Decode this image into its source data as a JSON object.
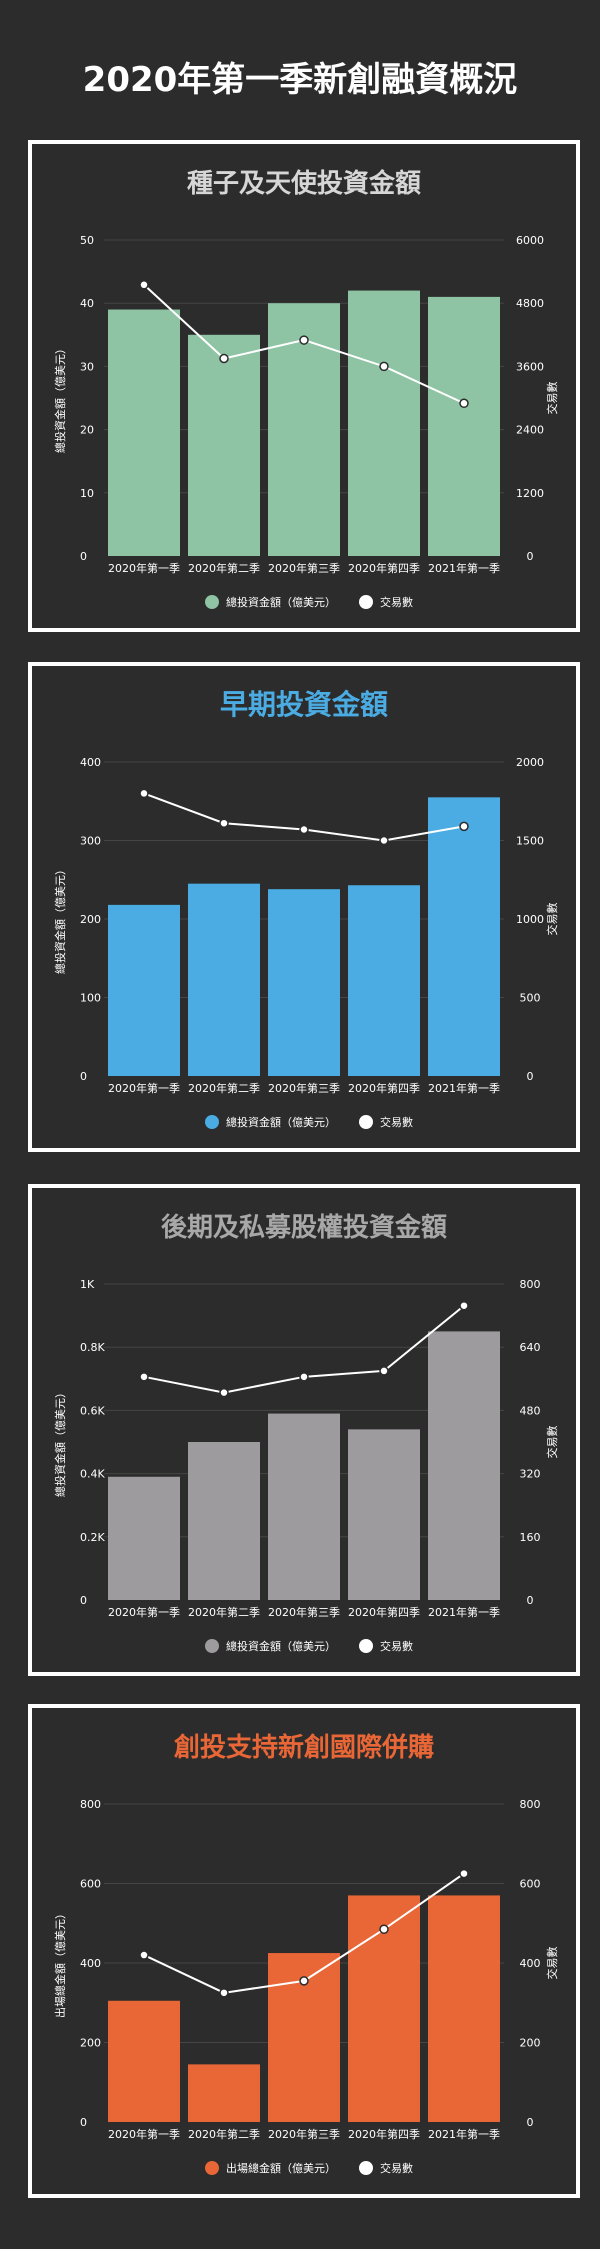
{
  "page": {
    "title": "2020年第一季新創融資概況"
  },
  "chart_data": [
    {
      "type": "bar",
      "title": "種子及天使投資金額",
      "title_color": "#d6d6d6",
      "categories": [
        "2020年第一季",
        "2020年第二季",
        "2020年第三季",
        "2020年第四季",
        "2021年第一季"
      ],
      "series": [
        {
          "name": "總投資金額（億美元）",
          "kind": "bar",
          "axis": "left",
          "color": "#8ec3a4",
          "values": [
            39,
            35,
            40,
            42,
            41
          ]
        },
        {
          "name": "交易數",
          "kind": "line",
          "axis": "right",
          "color": "#ffffff",
          "values": [
            5150,
            3750,
            4100,
            3600,
            2900
          ]
        }
      ],
      "ylabel": "總投資金額（億美元）",
      "y2label": "交易數",
      "ylim": [
        0,
        50
      ],
      "y2lim": [
        0,
        6000
      ],
      "yticks": [
        "0",
        "10",
        "20",
        "30",
        "40",
        "50"
      ],
      "y2ticks": [
        "0",
        "1200",
        "2400",
        "3600",
        "4800",
        "6000"
      ],
      "legend": "bottom",
      "grid": true
    },
    {
      "type": "bar",
      "title": "早期投資金額",
      "title_color": "#4aace3",
      "categories": [
        "2020年第一季",
        "2020年第二季",
        "2020年第三季",
        "2020年第四季",
        "2021年第一季"
      ],
      "series": [
        {
          "name": "總投資金額（億美元）",
          "kind": "bar",
          "axis": "left",
          "color": "#4aace3",
          "values": [
            218,
            245,
            238,
            243,
            355
          ]
        },
        {
          "name": "交易數",
          "kind": "line",
          "axis": "right",
          "color": "#ffffff",
          "values": [
            1800,
            1610,
            1570,
            1500,
            1590
          ]
        }
      ],
      "ylabel": "總投資金額（億美元）",
      "y2label": "交易數",
      "ylim": [
        0,
        400
      ],
      "y2lim": [
        0,
        2000
      ],
      "yticks": [
        "0",
        "100",
        "200",
        "300",
        "400"
      ],
      "y2ticks": [
        "0",
        "500",
        "1000",
        "1500",
        "2000"
      ],
      "legend": "bottom",
      "grid": true
    },
    {
      "type": "bar",
      "title": "後期及私募股權投資金額",
      "title_color": "#a8a8a8",
      "categories": [
        "2020年第一季",
        "2020年第二季",
        "2020年第三季",
        "2020年第四季",
        "2021年第一季"
      ],
      "series": [
        {
          "name": "總投資金額（億美元）",
          "kind": "bar",
          "axis": "left",
          "color": "#9e9b9e",
          "values": [
            0.39,
            0.5,
            0.59,
            0.54,
            0.85
          ]
        },
        {
          "name": "交易數",
          "kind": "line",
          "axis": "right",
          "color": "#ffffff",
          "values": [
            565,
            525,
            565,
            580,
            745
          ]
        }
      ],
      "ylabel": "總投資金額（億美元）",
      "y2label": "交易數",
      "ylim": [
        0,
        1
      ],
      "y2lim": [
        0,
        800
      ],
      "yticks": [
        "0",
        "0.2K",
        "0.4K",
        "0.6K",
        "0.8K",
        "1K"
      ],
      "y2ticks": [
        "0",
        "160",
        "320",
        "480",
        "640",
        "800"
      ],
      "legend": "bottom",
      "grid": true
    },
    {
      "type": "bar",
      "title": "創投支持新創國際併購",
      "title_color": "#e96636",
      "categories": [
        "2020年第一季",
        "2020年第二季",
        "2020年第三季",
        "2020年第四季",
        "2021年第一季"
      ],
      "series": [
        {
          "name": "出場總金額（億美元）",
          "kind": "bar",
          "axis": "left",
          "color": "#e96636",
          "values": [
            305,
            145,
            425,
            570,
            570
          ]
        },
        {
          "name": "交易數",
          "kind": "line",
          "axis": "right",
          "color": "#ffffff",
          "values": [
            420,
            325,
            355,
            485,
            625
          ]
        }
      ],
      "ylabel": "出場總金額（億美元）",
      "y2label": "交易數",
      "ylim": [
        0,
        800
      ],
      "y2lim": [
        0,
        800
      ],
      "yticks": [
        "0",
        "200",
        "400",
        "600",
        "800"
      ],
      "y2ticks": [
        "0",
        "200",
        "400",
        "600",
        "800"
      ],
      "legend": "bottom",
      "grid": true
    }
  ]
}
